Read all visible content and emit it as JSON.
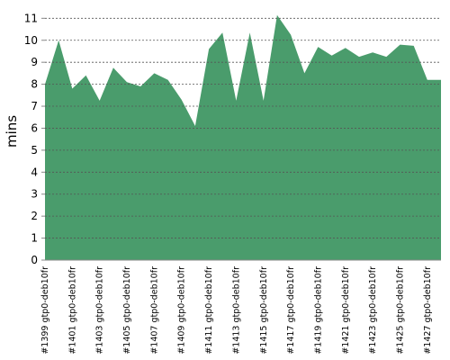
{
  "chart_data": {
    "type": "area",
    "y_label": "mins",
    "categories": [
      "#1399 gtp0-deb10fr",
      null,
      "#1401 gtp0-deb10fr",
      null,
      "#1403 gtp0-deb10fr",
      null,
      "#1405 gtp0-deb10fr",
      null,
      "#1407 gtp0-deb10fr",
      null,
      "#1409 gtp0-deb10fr",
      null,
      "#1411 gtp0-deb10fr",
      null,
      "#1413 gtp0-deb10fr",
      null,
      "#1415 gtp0-deb10fr",
      null,
      "#1417 gtp0-deb10fr",
      null,
      "#1419 gtp0-deb10fr",
      null,
      "#1421 gtp0-deb10fr",
      null,
      "#1423 gtp0-deb10fr",
      null,
      "#1425 gtp0-deb10fr",
      null,
      "#1427 gtp0-deb10fr",
      null
    ],
    "series": [
      {
        "color": "#4a9c6c",
        "values": [
          8.0,
          10.0,
          7.8,
          8.4,
          7.25,
          8.75,
          8.1,
          7.9,
          8.5,
          8.2,
          7.3,
          6.1,
          9.6,
          10.35,
          7.25,
          10.35,
          7.25,
          11.15,
          10.25,
          8.5,
          9.7,
          9.3,
          9.65,
          9.25,
          9.45,
          9.25,
          9.8,
          9.75,
          8.2,
          8.2
        ]
      }
    ],
    "ylim": [
      0,
      11.3
    ],
    "yticks": [
      0,
      1,
      2,
      3,
      4,
      5,
      6,
      7,
      8,
      9,
      10,
      11
    ],
    "grid": true
  }
}
